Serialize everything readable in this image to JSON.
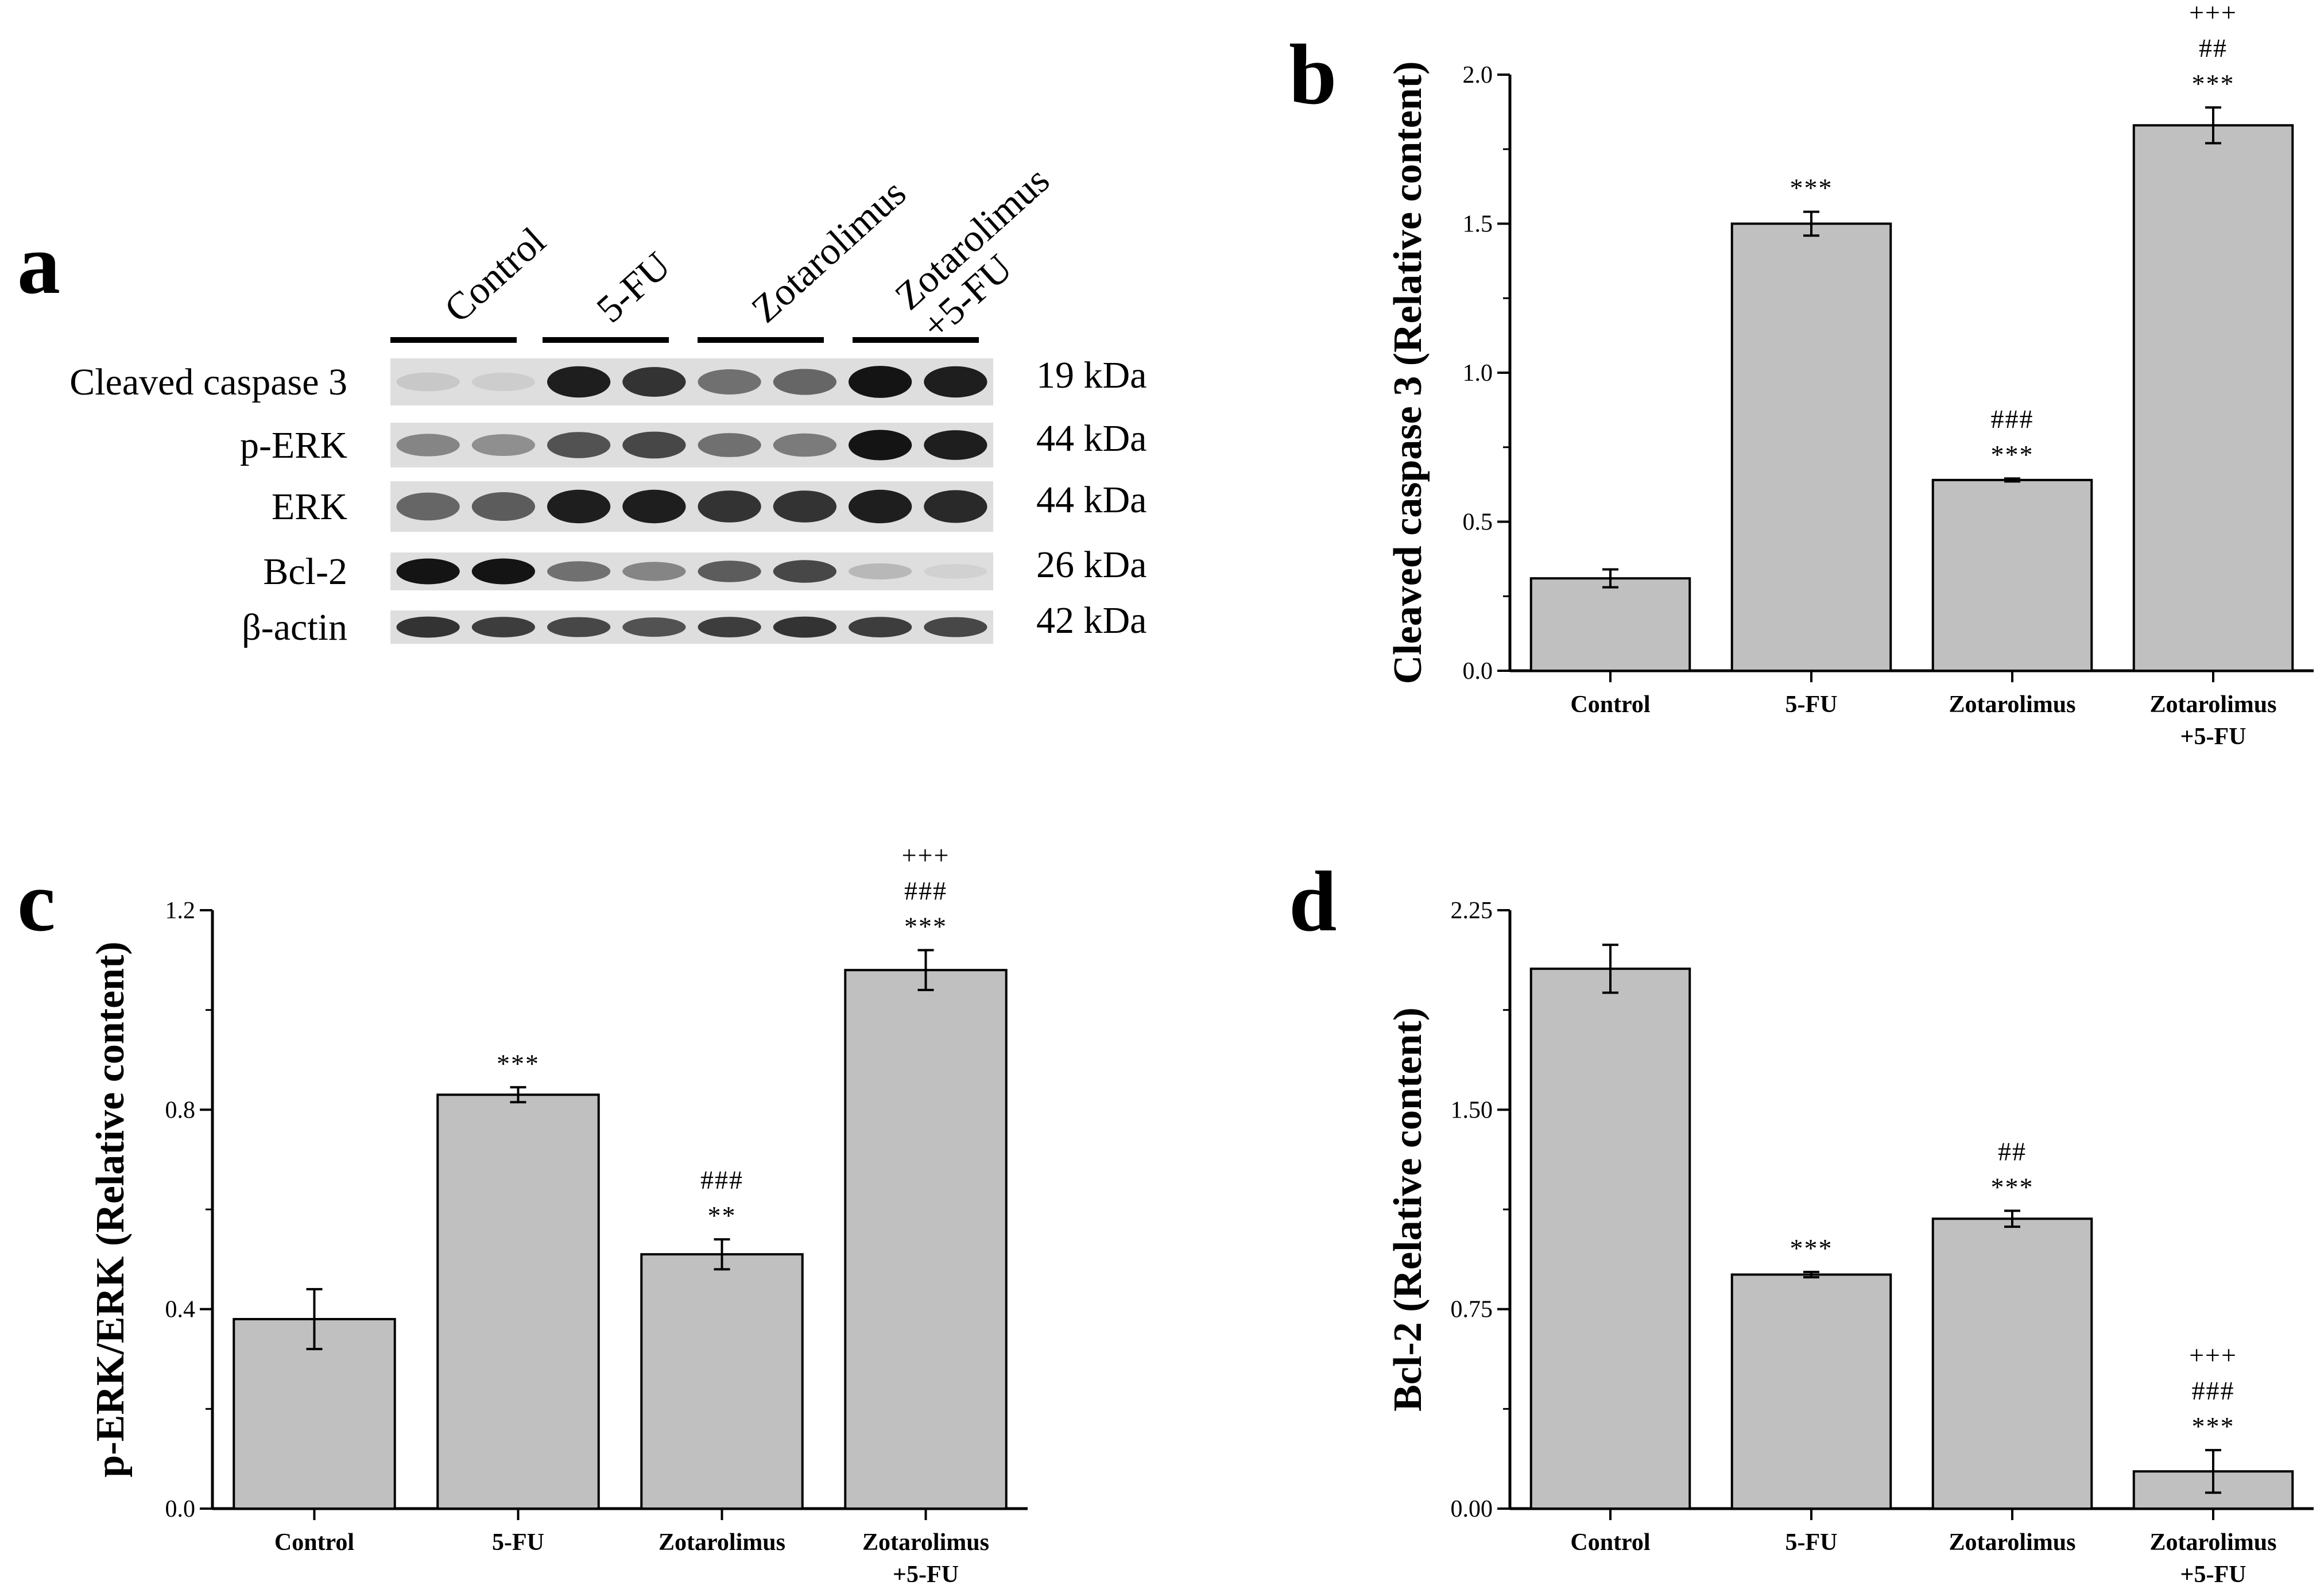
{
  "figure": {
    "panel_labels": [
      "a",
      "b",
      "c",
      "d"
    ]
  },
  "blot": {
    "groups": [
      "Control",
      "5-FU",
      "Zotarolimus",
      "Zotarolimus\n+5-FU"
    ],
    "rows": [
      {
        "label": "Cleaved caspase 3",
        "size": "19 kDa"
      },
      {
        "label": "p-ERK",
        "size": "44 kDa"
      },
      {
        "label": "ERK",
        "size": "44 kDa"
      },
      {
        "label": "Bcl-2",
        "size": "26 kDa"
      },
      {
        "label": "β-actin",
        "size": "42 kDa"
      }
    ],
    "band_intensity": [
      [
        0.12,
        0.1,
        0.95,
        0.85,
        0.55,
        0.6,
        1.0,
        0.95
      ],
      [
        0.45,
        0.4,
        0.7,
        0.75,
        0.55,
        0.5,
        1.0,
        0.95
      ],
      [
        0.6,
        0.65,
        0.95,
        0.95,
        0.85,
        0.85,
        0.95,
        0.9
      ],
      [
        1.0,
        1.0,
        0.55,
        0.45,
        0.65,
        0.75,
        0.2,
        0.08
      ],
      [
        0.85,
        0.8,
        0.75,
        0.7,
        0.8,
        0.85,
        0.8,
        0.75
      ]
    ]
  },
  "chart_data": [
    {
      "panel": "b",
      "type": "bar",
      "categories": [
        "Control",
        "5-FU",
        "Zotarolimus",
        "Zotarolimus\n+5-FU"
      ],
      "values": [
        0.31,
        1.5,
        0.64,
        1.83
      ],
      "errors": [
        0.03,
        0.04,
        0.005,
        0.06
      ],
      "annotations": [
        [],
        [
          "***"
        ],
        [
          "###",
          "***"
        ],
        [
          "+++",
          "##",
          "***"
        ]
      ],
      "ylabel": "Cleaved caspase 3 (Relative content)",
      "xlabel": "",
      "ylim": [
        0,
        2.0
      ],
      "yticks": [
        0.0,
        0.5,
        1.0,
        1.5,
        2.0
      ],
      "ytick_labels": [
        "0.0",
        "0.5",
        "1.0",
        "1.5",
        "2.0"
      ],
      "bar_color": "#c0c0c0"
    },
    {
      "panel": "c",
      "type": "bar",
      "categories": [
        "Control",
        "5-FU",
        "Zotarolimus",
        "Zotarolimus\n+5-FU"
      ],
      "values": [
        0.38,
        0.83,
        0.51,
        1.08
      ],
      "errors": [
        0.06,
        0.015,
        0.03,
        0.04
      ],
      "annotations": [
        [],
        [
          "***"
        ],
        [
          "###",
          "**"
        ],
        [
          "+++",
          "###",
          "***"
        ]
      ],
      "ylabel": "p-ERK/ERK (Relative content)",
      "xlabel": "",
      "ylim": [
        0,
        1.2
      ],
      "yticks": [
        0.0,
        0.4,
        0.8,
        1.2
      ],
      "ytick_labels": [
        "0.0",
        "0.4",
        "0.8",
        "1.2"
      ],
      "bar_color": "#c0c0c0"
    },
    {
      "panel": "d",
      "type": "bar",
      "categories": [
        "Control",
        "5-FU",
        "Zotarolimus",
        "Zotarolimus\n+5-FU"
      ],
      "values": [
        2.03,
        0.88,
        1.09,
        0.14
      ],
      "errors": [
        0.09,
        0.01,
        0.03,
        0.08
      ],
      "annotations": [
        [],
        [
          "***"
        ],
        [
          "##",
          "***"
        ],
        [
          "+++",
          "###",
          "***"
        ]
      ],
      "ylabel": "Bcl-2 (Relative content)",
      "xlabel": "",
      "ylim": [
        0,
        2.25
      ],
      "yticks": [
        0.0,
        0.75,
        1.5,
        2.25
      ],
      "ytick_labels": [
        "0.00",
        "0.75",
        "1.50",
        "2.25"
      ],
      "bar_color": "#c0c0c0"
    }
  ]
}
